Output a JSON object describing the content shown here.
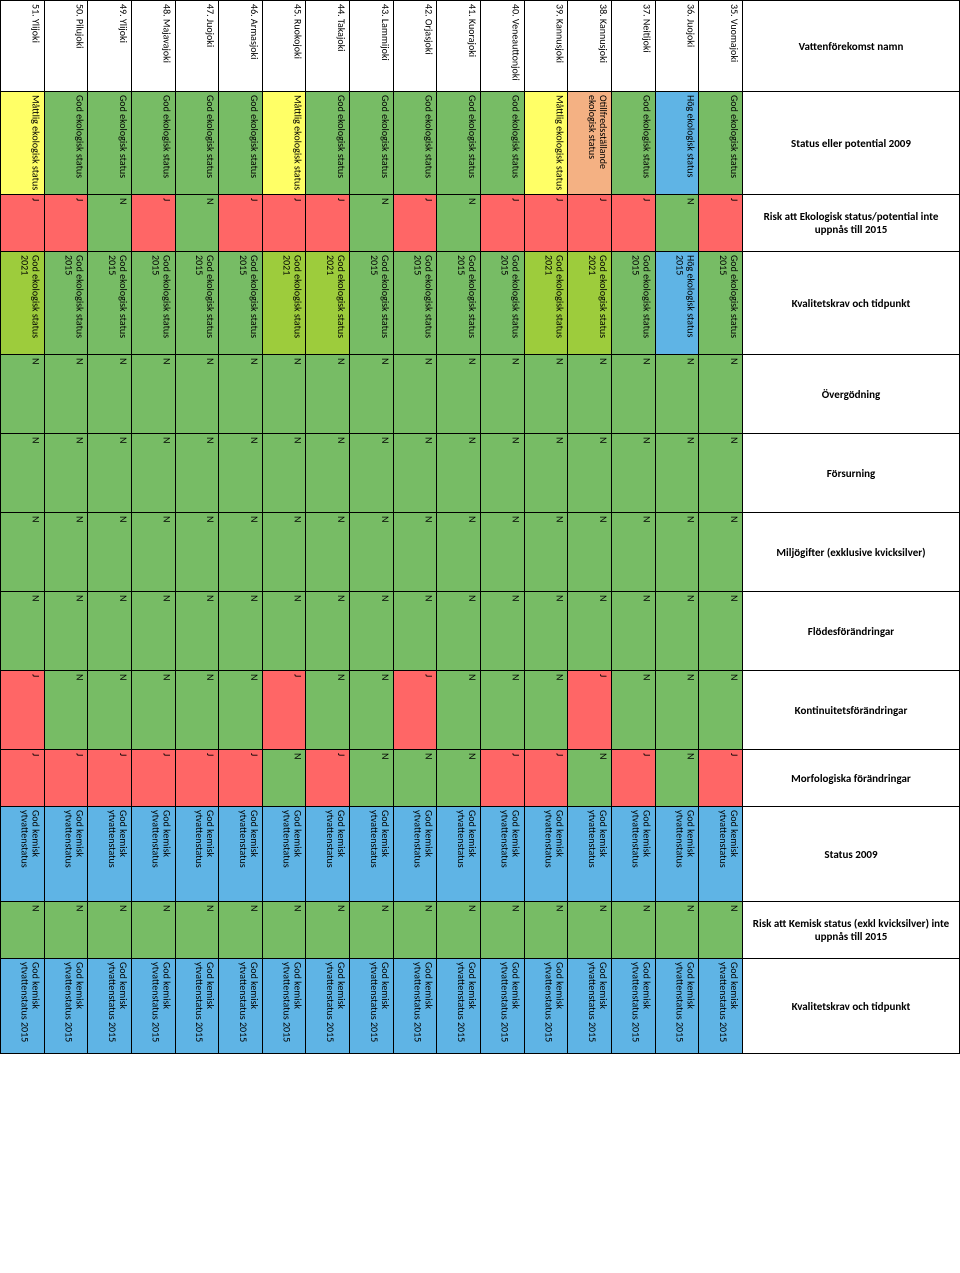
{
  "colors": {
    "green": "#77bc65",
    "lgreen": "#9dcc3c",
    "yellow": "#ffff66",
    "orange": "#f4b183",
    "red": "#ff6666",
    "blue": "#5fb4e5"
  },
  "headers": {
    "name": "Vattenförekomst namn",
    "status2009": "Status eller potential 2009",
    "risk_eco": "Risk att Ekologisk status/potential inte uppnås till 2015",
    "quality": "Kvalitetskrav och tidpunkt",
    "over": "Övergödning",
    "acid": "Försurning",
    "pollut": "Miljögifter (exklusive kvicksilver)",
    "flow": "Flödesförändringar",
    "cont": "Kontinuitetsförändringar",
    "morph": "Morfologiska förändringar",
    "chem2009": "Status 2009",
    "risk_chem": "Risk att Kemisk status (exkl kvicksilver) inte uppnås till 2015",
    "chem_quality": "Kvalitetskrav och tidpunkt"
  },
  "status_text": {
    "god": "God ekologisk status",
    "hog": "Hög ekologisk status",
    "mattlig": "Måttlig ekologisk status",
    "otill": "Otillfredsställande ekologisk status",
    "god15": "God ekologisk status 2015",
    "god21": "God ekologisk status 2021",
    "hog15": "Hög ekologisk status 2015",
    "chem": "God kemisk ytvattenstatus",
    "chem15": "God kemisk ytvattenstatus 2015"
  },
  "rows": [
    {
      "name": "35. Vuomajoki",
      "s": "god",
      "r": "J",
      "q": "god15",
      "cont": "N",
      "morph": "J"
    },
    {
      "name": "36. Juojoki",
      "s": "hog",
      "r": "N",
      "q": "hog15",
      "cont": "N",
      "morph": "N"
    },
    {
      "name": "37. Neitijoki",
      "s": "god",
      "r": "J",
      "q": "god15",
      "cont": "N",
      "morph": "J"
    },
    {
      "name": "38. Kannusjoki",
      "s": "otill",
      "r": "J",
      "q": "god21",
      "cont": "J",
      "morph": "N"
    },
    {
      "name": "39. Kannusjoki",
      "s": "mattlig",
      "r": "J",
      "q": "god21",
      "cont": "N",
      "morph": "J"
    },
    {
      "name": "40. Veneauttonjoki",
      "s": "god",
      "r": "J",
      "q": "god15",
      "cont": "N",
      "morph": "J"
    },
    {
      "name": "41. Kuorajoki",
      "s": "god",
      "r": "N",
      "q": "god15",
      "cont": "N",
      "morph": "N"
    },
    {
      "name": "42. Orjasjoki",
      "s": "god",
      "r": "J",
      "q": "god15",
      "cont": "J",
      "morph": "N"
    },
    {
      "name": "43. Lammijoki",
      "s": "god",
      "r": "N",
      "q": "god15",
      "cont": "N",
      "morph": "N"
    },
    {
      "name": "44. Takajoki",
      "s": "god",
      "r": "J",
      "q": "god21",
      "cont": "N",
      "morph": "J"
    },
    {
      "name": "45. Ruokojoki",
      "s": "mattlig",
      "r": "J",
      "q": "god21",
      "cont": "J",
      "morph": "N"
    },
    {
      "name": "46. Armasjoki",
      "s": "god",
      "r": "J",
      "q": "god15",
      "cont": "N",
      "morph": "J"
    },
    {
      "name": "47. Juojoki",
      "s": "god",
      "r": "N",
      "q": "god15",
      "cont": "N",
      "morph": "J"
    },
    {
      "name": "48. Majavajoki",
      "s": "god",
      "r": "J",
      "q": "god15",
      "cont": "N",
      "morph": "J"
    },
    {
      "name": "49. Ylijoki",
      "s": "god",
      "r": "N",
      "q": "god15",
      "cont": "N",
      "morph": "J"
    },
    {
      "name": "50. Pilujoki",
      "s": "god",
      "r": "J",
      "q": "god15",
      "cont": "N",
      "morph": "J"
    },
    {
      "name": "51. Ylijoki",
      "s": "mattlig",
      "r": "J",
      "q": "god21",
      "cont": "J",
      "morph": "J"
    }
  ]
}
